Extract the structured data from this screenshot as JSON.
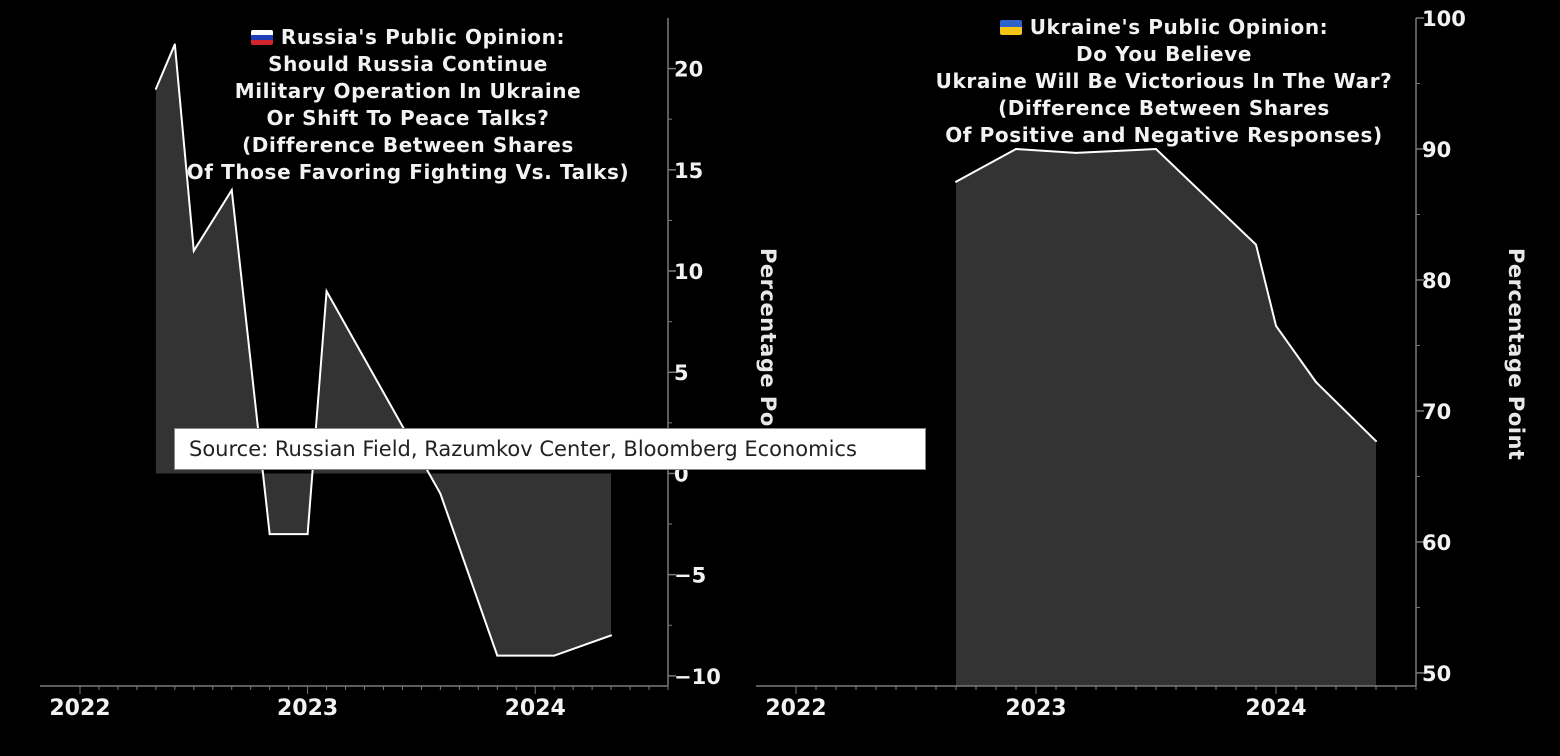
{
  "chart_data": [
    {
      "type": "area",
      "title_lines": [
        "Russia's Public Opinion:",
        "Should Russia Continue",
        "Military Operation In Ukraine",
        "Or Shift To Peace Talks?",
        "(Difference Between Shares",
        "Of Those Favoring Fighting Vs. Talks)"
      ],
      "flag": "russia-flag-icon",
      "ylabel": "Percentage Point",
      "x": [
        "2022-05",
        "2022-06",
        "2022-07",
        "2022-09",
        "2022-11",
        "2023-01",
        "2023-02",
        "2023-05",
        "2023-08",
        "2023-11",
        "2024-02",
        "2024-05"
      ],
      "values": [
        19,
        21.2,
        11,
        14,
        -3,
        -3,
        9,
        4,
        -1,
        -9,
        -9,
        -8
      ],
      "ylim": [
        -10.5,
        22.5
      ],
      "yticks": [
        -10,
        -5,
        0,
        5,
        10,
        15,
        20
      ],
      "ytick_labels": [
        "−10",
        "−5",
        "0",
        "5",
        "10",
        "15",
        "20"
      ],
      "xticks": [
        "2022",
        "2023",
        "2024"
      ],
      "xlim": [
        "2022-01",
        "2024-08"
      ]
    },
    {
      "type": "area",
      "title_lines": [
        "Ukraine's Public Opinion:",
        "Do You Believe",
        "Ukraine Will Be Victorious In The War?",
        "(Difference Between Shares",
        "Of Positive and Negative Responses)"
      ],
      "flag": "ukraine-flag-icon",
      "ylabel": "Percentage Point",
      "x": [
        "2022-09",
        "2022-12",
        "2023-03",
        "2023-07",
        "2023-12",
        "2024-01",
        "2024-03",
        "2024-06"
      ],
      "values": [
        87.5,
        90,
        89.7,
        90,
        82.7,
        76.5,
        72.2,
        67.7
      ],
      "ylim": [
        49,
        100
      ],
      "yticks": [
        50,
        60,
        70,
        80,
        90,
        100
      ],
      "ytick_labels": [
        "50",
        "60",
        "70",
        "80",
        "90",
        "100"
      ],
      "xticks": [
        "2022",
        "2023",
        "2024"
      ],
      "xlim": [
        "2022-01",
        "2024-08"
      ]
    }
  ],
  "source": "Source: Russian Field, Razumkov Center, Bloomberg Economics",
  "colors": {
    "background": "#000000",
    "area_fill": "#333333",
    "line": "#ffffff",
    "axis": "#7a7a7a",
    "text": "#f2f2f2"
  }
}
